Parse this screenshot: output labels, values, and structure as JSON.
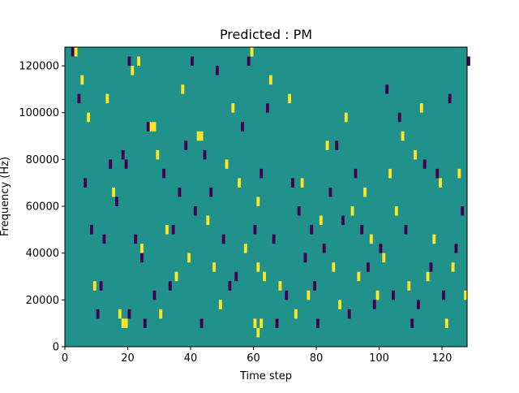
{
  "chart_data": {
    "type": "heatmap",
    "title": "Predicted : PM",
    "xlabel": "Time step",
    "ylabel": "Frequency (Hz)",
    "xlim": [
      0,
      128
    ],
    "ylim": [
      0,
      128000
    ],
    "x_ticks": [
      0,
      20,
      40,
      60,
      80,
      100,
      120
    ],
    "x_tick_labels": [
      "0",
      "20",
      "40",
      "60",
      "80",
      "100",
      "120"
    ],
    "y_ticks": [
      0,
      20000,
      40000,
      60000,
      80000,
      100000,
      120000
    ],
    "y_tick_labels": [
      "0",
      "20000",
      "40000",
      "60000",
      "80000",
      "100000",
      "120000"
    ],
    "colormap": "viridis",
    "colors": {
      "background": "#21918c",
      "low": "#440154",
      "high": "#fde725"
    },
    "grid": false,
    "legend": "none",
    "cell_width_steps": 1,
    "cell_height_hz": 4000,
    "low_cells": [
      [
        2,
        124000
      ],
      [
        4,
        104000
      ],
      [
        6,
        68000
      ],
      [
        8,
        48000
      ],
      [
        10,
        12000
      ],
      [
        11,
        24000
      ],
      [
        12,
        44000
      ],
      [
        14,
        76000
      ],
      [
        16,
        60000
      ],
      [
        18,
        80000
      ],
      [
        19,
        76000
      ],
      [
        20,
        120000
      ],
      [
        20,
        12000
      ],
      [
        22,
        44000
      ],
      [
        24,
        36000
      ],
      [
        25,
        8000
      ],
      [
        26,
        92000
      ],
      [
        28,
        20000
      ],
      [
        31,
        72000
      ],
      [
        33,
        24000
      ],
      [
        34,
        48000
      ],
      [
        36,
        64000
      ],
      [
        38,
        84000
      ],
      [
        40,
        120000
      ],
      [
        41,
        56000
      ],
      [
        43,
        8000
      ],
      [
        44,
        80000
      ],
      [
        46,
        64000
      ],
      [
        48,
        116000
      ],
      [
        50,
        44000
      ],
      [
        52,
        24000
      ],
      [
        54,
        28000
      ],
      [
        56,
        92000
      ],
      [
        58,
        120000
      ],
      [
        60,
        48000
      ],
      [
        62,
        72000
      ],
      [
        64,
        100000
      ],
      [
        66,
        44000
      ],
      [
        67,
        8000
      ],
      [
        70,
        20000
      ],
      [
        72,
        68000
      ],
      [
        74,
        56000
      ],
      [
        76,
        36000
      ],
      [
        78,
        48000
      ],
      [
        79,
        24000
      ],
      [
        80,
        8000
      ],
      [
        82,
        40000
      ],
      [
        84,
        64000
      ],
      [
        86,
        84000
      ],
      [
        88,
        52000
      ],
      [
        90,
        12000
      ],
      [
        92,
        72000
      ],
      [
        94,
        48000
      ],
      [
        96,
        32000
      ],
      [
        98,
        16000
      ],
      [
        100,
        40000
      ],
      [
        102,
        108000
      ],
      [
        104,
        20000
      ],
      [
        106,
        96000
      ],
      [
        108,
        48000
      ],
      [
        110,
        8000
      ],
      [
        112,
        16000
      ],
      [
        114,
        76000
      ],
      [
        116,
        32000
      ],
      [
        118,
        72000
      ],
      [
        120,
        20000
      ],
      [
        122,
        104000
      ],
      [
        124,
        40000
      ],
      [
        126,
        56000
      ],
      [
        128,
        120000
      ]
    ],
    "high_cells": [
      [
        3,
        124000
      ],
      [
        5,
        112000
      ],
      [
        7,
        96000
      ],
      [
        9,
        24000
      ],
      [
        13,
        104000
      ],
      [
        15,
        64000
      ],
      [
        17,
        12000
      ],
      [
        18,
        8000
      ],
      [
        19,
        8000
      ],
      [
        21,
        116000
      ],
      [
        23,
        120000
      ],
      [
        24,
        40000
      ],
      [
        27,
        92000
      ],
      [
        28,
        92000
      ],
      [
        29,
        80000
      ],
      [
        30,
        12000
      ],
      [
        32,
        48000
      ],
      [
        35,
        28000
      ],
      [
        37,
        108000
      ],
      [
        39,
        36000
      ],
      [
        42,
        88000
      ],
      [
        43,
        88000
      ],
      [
        45,
        52000
      ],
      [
        47,
        32000
      ],
      [
        49,
        16000
      ],
      [
        51,
        76000
      ],
      [
        53,
        100000
      ],
      [
        55,
        68000
      ],
      [
        57,
        40000
      ],
      [
        59,
        124000
      ],
      [
        60,
        8000
      ],
      [
        61,
        4000
      ],
      [
        61,
        32000
      ],
      [
        62,
        8000
      ],
      [
        61,
        60000
      ],
      [
        63,
        28000
      ],
      [
        65,
        112000
      ],
      [
        68,
        24000
      ],
      [
        71,
        104000
      ],
      [
        73,
        12000
      ],
      [
        75,
        68000
      ],
      [
        77,
        20000
      ],
      [
        81,
        52000
      ],
      [
        83,
        84000
      ],
      [
        85,
        32000
      ],
      [
        87,
        16000
      ],
      [
        89,
        96000
      ],
      [
        91,
        56000
      ],
      [
        93,
        28000
      ],
      [
        95,
        64000
      ],
      [
        97,
        44000
      ],
      [
        99,
        20000
      ],
      [
        101,
        36000
      ],
      [
        103,
        72000
      ],
      [
        105,
        56000
      ],
      [
        107,
        88000
      ],
      [
        109,
        24000
      ],
      [
        111,
        80000
      ],
      [
        113,
        100000
      ],
      [
        115,
        28000
      ],
      [
        117,
        44000
      ],
      [
        119,
        68000
      ],
      [
        121,
        8000
      ],
      [
        123,
        32000
      ],
      [
        125,
        72000
      ],
      [
        127,
        20000
      ]
    ]
  }
}
